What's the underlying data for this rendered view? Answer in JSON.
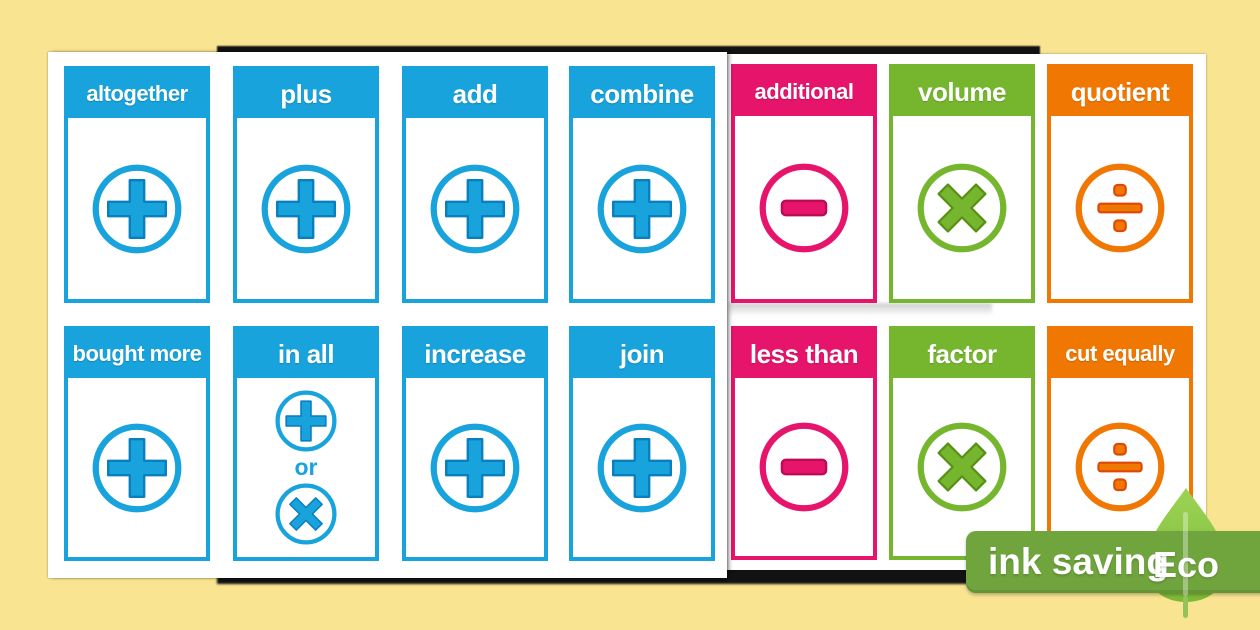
{
  "page": {
    "background_color": "#F9E491",
    "description_labels": {
      "or_connector": "or"
    }
  },
  "palette": {
    "blue": {
      "main": "#18A3DC",
      "dark": "#0A7FBE"
    },
    "pink": {
      "main": "#E6146B",
      "dark": "#BC0A55"
    },
    "green": {
      "main": "#76B62F",
      "dark": "#579114"
    },
    "orange": {
      "main": "#F07802",
      "dark": "#DD4708"
    },
    "card_text": "#FFFFFF",
    "badge_green": "#70A53E",
    "leaf_green_light": "#9CD355",
    "leaf_green_dark": "#7DB936"
  },
  "left_sheet": {
    "cards": [
      {
        "label": "altogether",
        "color": "blue",
        "symbols": [
          "plus"
        ]
      },
      {
        "label": "plus",
        "color": "blue",
        "symbols": [
          "plus"
        ]
      },
      {
        "label": "add",
        "color": "blue",
        "symbols": [
          "plus"
        ]
      },
      {
        "label": "combine",
        "color": "blue",
        "symbols": [
          "plus"
        ]
      },
      {
        "label": "bought more",
        "color": "blue",
        "symbols": [
          "plus"
        ]
      },
      {
        "label": "in all",
        "color": "blue",
        "symbols": [
          "plus",
          "times"
        ],
        "connector": "or"
      },
      {
        "label": "increase",
        "color": "blue",
        "symbols": [
          "plus"
        ]
      },
      {
        "label": "join",
        "color": "blue",
        "symbols": [
          "plus"
        ]
      }
    ]
  },
  "right_sheet": {
    "cards": [
      {
        "label": "additional",
        "color": "pink",
        "symbols": [
          "minus"
        ]
      },
      {
        "label": "volume",
        "color": "green",
        "symbols": [
          "times"
        ]
      },
      {
        "label": "quotient",
        "color": "orange",
        "symbols": [
          "divide"
        ]
      },
      {
        "label": "less than",
        "color": "pink",
        "symbols": [
          "minus"
        ]
      },
      {
        "label": "factor",
        "color": "green",
        "symbols": [
          "times"
        ]
      },
      {
        "label": "cut equally",
        "color": "orange",
        "symbols": [
          "divide"
        ]
      }
    ]
  },
  "eco_badge": {
    "label": "ink saving",
    "eco_label": "Eco"
  }
}
